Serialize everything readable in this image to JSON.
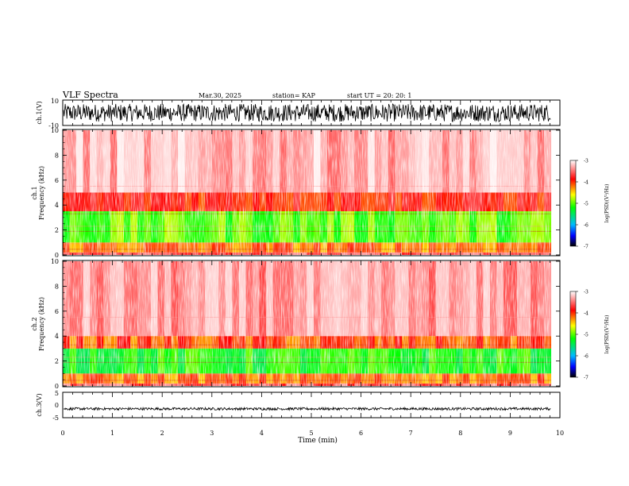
{
  "header": {
    "title": "VLF Spectra",
    "date": "Mar.30, 2025",
    "station": "station= KAP",
    "start": "start  UT  =   20: 20: 1"
  },
  "chart_data": [
    {
      "type": "line",
      "panel": "ch1-waveform",
      "ylabel": "ch.1(V)",
      "ylim": [
        -10,
        10
      ],
      "ytick_labels": [
        "10",
        "-10"
      ],
      "xlim": [
        0,
        10
      ],
      "series_color": "#000000",
      "amplitude_range": [
        -7,
        7
      ],
      "time_extent_min": 9.82
    },
    {
      "type": "heatmap",
      "panel": "ch1-spectrogram",
      "ylabel": "ch.1\nFrequency (kHz)",
      "ylim": [
        0,
        10
      ],
      "ytick_labels": [
        "0",
        "2",
        "4",
        "6",
        "8",
        "10"
      ],
      "xlim": [
        0,
        10
      ],
      "time_extent_min": 9.82,
      "colorbar": {
        "label": "log(PSD)(V²/Hz)",
        "range": [
          -7,
          -3
        ],
        "tick_labels": [
          "-3",
          "-4",
          "-5",
          "-6",
          "-7"
        ]
      },
      "bands": [
        {
          "freq_khz": [
            0,
            0.2
          ],
          "log_psd": -3.6
        },
        {
          "freq_khz": [
            0.2,
            1.0
          ],
          "log_psd": -4.2
        },
        {
          "freq_khz": [
            1.0,
            3.5
          ],
          "log_psd": -5.0
        },
        {
          "freq_khz": [
            3.5,
            5.0
          ],
          "log_psd": -3.9
        },
        {
          "freq_khz": [
            5.0,
            10.0
          ],
          "log_psd": -3.3
        }
      ]
    },
    {
      "type": "heatmap",
      "panel": "ch2-spectrogram",
      "ylabel": "ch.2\nFrequency (kHz)",
      "ylim": [
        0,
        10
      ],
      "ytick_labels": [
        "0",
        "2",
        "4",
        "6",
        "8",
        "10"
      ],
      "xlim": [
        0,
        10
      ],
      "time_extent_min": 9.82,
      "colorbar": {
        "label": "log(PSD)(V²/Hz)",
        "range": [
          -7,
          -3
        ],
        "tick_labels": [
          "-3",
          "-4",
          "-5",
          "-6",
          "-7"
        ]
      },
      "bands": [
        {
          "freq_khz": [
            0,
            0.2
          ],
          "log_psd": -3.6
        },
        {
          "freq_khz": [
            0.2,
            1.0
          ],
          "log_psd": -4.2
        },
        {
          "freq_khz": [
            1.0,
            3.0
          ],
          "log_psd": -5.2
        },
        {
          "freq_khz": [
            3.0,
            4.0
          ],
          "log_psd": -4.1
        },
        {
          "freq_khz": [
            4.0,
            10.0
          ],
          "log_psd": -3.4
        }
      ]
    },
    {
      "type": "line",
      "panel": "ch3-waveform",
      "ylabel": "ch.3(V)",
      "ylim": [
        -5,
        5
      ],
      "ytick_labels": [
        "5",
        "0",
        "-5"
      ],
      "xlim": [
        0,
        10
      ],
      "xlabel": "Time (min)",
      "xtick_labels": [
        "0",
        "1",
        "2",
        "3",
        "4",
        "5",
        "6",
        "7",
        "8",
        "9",
        "10"
      ],
      "series_color": "#000000",
      "amplitude_range": [
        -2,
        -1
      ],
      "time_extent_min": 9.82
    }
  ]
}
